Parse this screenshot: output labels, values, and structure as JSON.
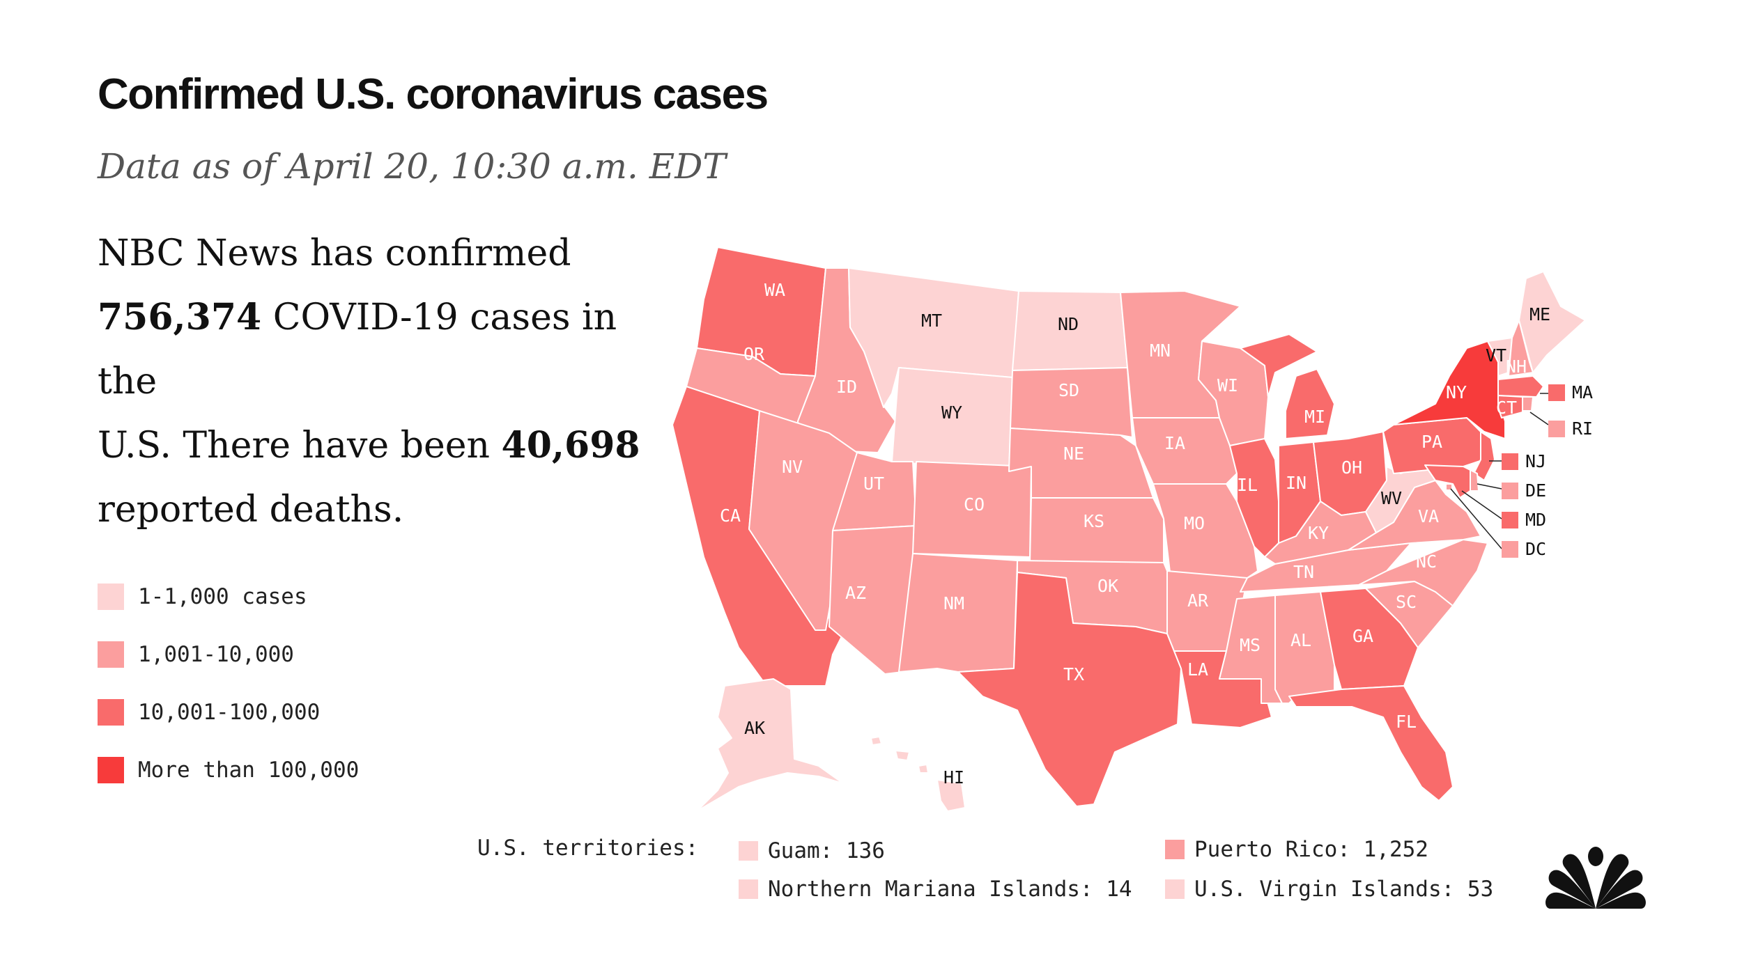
{
  "header": {
    "title": "Confirmed U.S. coronavirus cases",
    "subtitle": "Data as of April 20, 10:30 a.m. EDT"
  },
  "summary": {
    "line1": "NBC News has confirmed",
    "cases_bold": "756,374",
    "line2_rest": " COVID-19 cases in the",
    "line3_pre": "U.S.  There have been ",
    "deaths_bold": "40,698",
    "line4": "reported deaths."
  },
  "colors": {
    "tier1": "#fdd3d3",
    "tier2": "#fb9e9e",
    "tier3": "#f96b6b",
    "tier4": "#f73b3b"
  },
  "legend": [
    {
      "label": "1-1,000 cases",
      "tier": "tier1"
    },
    {
      "label": "1,001-10,000",
      "tier": "tier2"
    },
    {
      "label": "10,001-100,000",
      "tier": "tier3"
    },
    {
      "label": "More than 100,000",
      "tier": "tier4"
    }
  ],
  "states": {
    "WA": "tier3",
    "OR": "tier2",
    "CA": "tier3",
    "ID": "tier2",
    "NV": "tier2",
    "MT": "tier1",
    "WY": "tier1",
    "UT": "tier2",
    "AZ": "tier2",
    "CO": "tier2",
    "NM": "tier2",
    "ND": "tier1",
    "SD": "tier2",
    "NE": "tier2",
    "KS": "tier2",
    "OK": "tier2",
    "TX": "tier3",
    "MN": "tier2",
    "IA": "tier2",
    "MO": "tier2",
    "AR": "tier2",
    "LA": "tier3",
    "WI": "tier2",
    "IL": "tier3",
    "MI": "tier3",
    "IN": "tier3",
    "OH": "tier3",
    "KY": "tier2",
    "TN": "tier2",
    "MS": "tier2",
    "AL": "tier2",
    "GA": "tier3",
    "FL": "tier3",
    "SC": "tier2",
    "NC": "tier2",
    "VA": "tier2",
    "WV": "tier1",
    "PA": "tier3",
    "NY": "tier4",
    "VT": "tier1",
    "NH": "tier2",
    "ME": "tier1",
    "MA": "tier3",
    "RI": "tier2",
    "CT": "tier3",
    "NJ": "tier3",
    "DE": "tier2",
    "MD": "tier3",
    "DC": "tier2",
    "AK": "tier1",
    "HI": "tier1"
  },
  "territories": {
    "heading": "U.S. territories:",
    "items": [
      {
        "label": "Guam: 136",
        "tier": "tier1"
      },
      {
        "label": "Northern Mariana Islands: 14",
        "tier": "tier1"
      },
      {
        "label": "Puerto Rico: 1,252",
        "tier": "tier2"
      },
      {
        "label": "U.S. Virgin Islands: 53",
        "tier": "tier1"
      }
    ]
  },
  "logo": "nbc-peacock-icon"
}
